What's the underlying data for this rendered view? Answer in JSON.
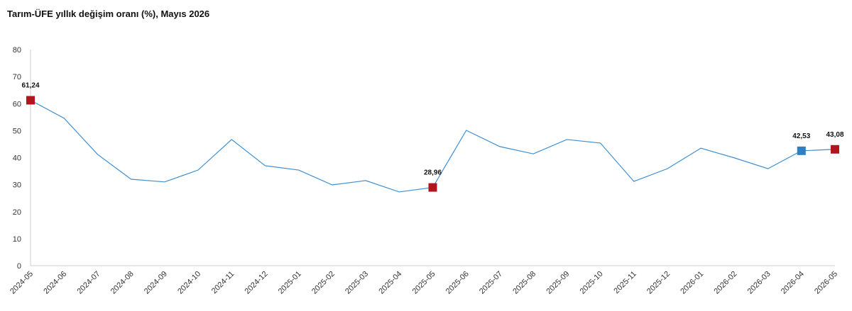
{
  "chart_data": {
    "type": "line",
    "title": "Tarım-ÜFE yıllık değişim oranı (%), Mayıs 2026",
    "categories": [
      "2024-05",
      "2024-06",
      "2024-07",
      "2024-08",
      "2024-09",
      "2024-10",
      "2024-11",
      "2024-12",
      "2025-01",
      "2025-02",
      "2025-03",
      "2025-04",
      "2025-05",
      "2025-06",
      "2025-07",
      "2025-08",
      "2025-09",
      "2025-10",
      "2025-11",
      "2025-12",
      "2026-01",
      "2026-02",
      "2026-03",
      "2026-04",
      "2026-05"
    ],
    "series": [
      {
        "color": "#3d8fd1",
        "values": [
          61.24,
          54.6,
          41.2,
          32.0,
          31.0,
          35.4,
          46.7,
          37.0,
          35.4,
          29.9,
          31.5,
          27.3,
          28.96,
          50.1,
          44.1,
          41.4,
          46.7,
          45.4,
          31.2,
          35.9,
          43.5,
          39.9,
          35.9,
          42.53,
          43.08
        ],
        "value_labels": [
          "61,24",
          null,
          null,
          null,
          null,
          null,
          null,
          null,
          null,
          null,
          null,
          null,
          "28,96",
          null,
          null,
          null,
          null,
          null,
          null,
          null,
          null,
          null,
          null,
          "42,53",
          "43,08"
        ],
        "marker_colors": [
          "#b0161e",
          null,
          null,
          null,
          null,
          null,
          null,
          null,
          null,
          null,
          null,
          null,
          "#b0161e",
          null,
          null,
          null,
          null,
          null,
          null,
          null,
          null,
          null,
          null,
          "#2f7fc1",
          "#b0161e"
        ]
      }
    ],
    "ylim": [
      0,
      80
    ],
    "yticks": [
      0,
      10,
      20,
      30,
      40,
      50,
      60,
      70,
      80
    ],
    "grid": false
  }
}
